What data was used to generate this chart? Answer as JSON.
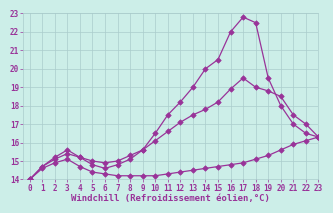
{
  "background_color": "#cceee8",
  "grid_color": "#aacccc",
  "line_color": "#993399",
  "xlim": [
    -0.5,
    23
  ],
  "ylim": [
    14,
    23
  ],
  "xlabel": "Windchill (Refroidissement éolien,°C)",
  "xlabel_fontsize": 6.5,
  "tick_fontsize": 5.5,
  "xticks": [
    0,
    1,
    2,
    3,
    4,
    5,
    6,
    7,
    8,
    9,
    10,
    11,
    12,
    13,
    14,
    15,
    16,
    17,
    18,
    19,
    20,
    21,
    22,
    23
  ],
  "yticks": [
    14,
    15,
    16,
    17,
    18,
    19,
    20,
    21,
    22,
    23
  ],
  "line1_x": [
    0,
    1,
    2,
    3,
    4,
    5,
    6,
    7,
    8,
    9,
    10,
    11,
    12,
    13,
    14,
    15,
    16,
    17,
    18,
    19,
    20,
    21,
    22,
    23
  ],
  "line1_y": [
    14.0,
    14.6,
    14.9,
    15.1,
    14.7,
    14.4,
    14.3,
    14.2,
    14.2,
    14.2,
    14.2,
    14.3,
    14.4,
    14.5,
    14.6,
    14.7,
    14.8,
    14.9,
    15.1,
    15.3,
    15.6,
    15.9,
    16.1,
    16.3
  ],
  "line2_x": [
    0,
    1,
    2,
    3,
    4,
    5,
    6,
    7,
    8,
    9,
    10,
    11,
    12,
    13,
    14,
    15,
    16,
    17,
    18,
    19,
    20,
    21,
    22,
    23
  ],
  "line2_y": [
    14.0,
    14.7,
    15.1,
    15.4,
    15.2,
    15.0,
    14.9,
    15.0,
    15.3,
    15.6,
    16.1,
    16.6,
    17.1,
    17.5,
    17.8,
    18.2,
    18.9,
    19.5,
    19.0,
    18.8,
    18.5,
    17.5,
    17.0,
    16.3
  ],
  "line3_x": [
    0,
    1,
    2,
    3,
    4,
    5,
    6,
    7,
    8,
    9,
    10,
    11,
    12,
    13,
    14,
    15,
    16,
    17,
    18,
    19,
    20,
    21,
    22,
    23
  ],
  "line3_y": [
    14.0,
    14.7,
    15.2,
    15.6,
    15.2,
    14.8,
    14.6,
    14.8,
    15.1,
    15.6,
    16.5,
    17.5,
    18.2,
    19.0,
    20.0,
    20.5,
    22.0,
    22.8,
    22.5,
    19.5,
    18.0,
    17.0,
    16.5,
    16.3
  ]
}
